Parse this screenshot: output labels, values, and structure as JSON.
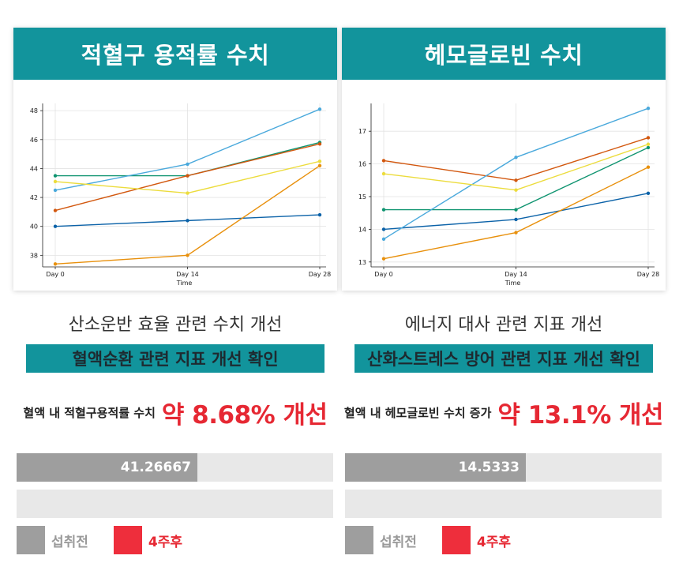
{
  "left": {
    "title": "적혈구 용적률 수치",
    "subtitle": "산소운반 효율 관련 수치 개선",
    "band": "혈액순환 관련 지표 개선 확인",
    "improve_label": "혈액 내 적혈구용적률 수치",
    "improve_value": "약 8.68% 개선",
    "bar_before": "41.26667",
    "bar_before_value": 41.26667,
    "bar_after_value": 0
  },
  "right": {
    "title": "헤모글로빈 수치",
    "subtitle": "에너지 대사 관련 지표 개선",
    "band": "산화스트레스 방어 관련 지표 개선 확인",
    "improve_label": "혈액 내 헤모글로빈 수치 증가",
    "improve_value": "약 13.1% 개선",
    "bar_before": "14.5333",
    "bar_before_value": 14.5333,
    "bar_after_value": 0
  },
  "legend": {
    "before": "섭취전",
    "after": "4주후"
  },
  "colors": {
    "teal": "#12949c",
    "red": "#e62833",
    "grey": "#9e9e9e"
  },
  "chart_data": [
    {
      "type": "line",
      "title": "",
      "xlabel": "Time",
      "ylabel": "",
      "categories": [
        "Day 0",
        "Day 14",
        "Day 28"
      ],
      "ylim": [
        37.2,
        48.5
      ],
      "yticks": [
        38,
        40,
        42,
        44,
        46,
        48
      ],
      "series": [
        {
          "name": "s1",
          "color": "#0b62a8",
          "values": [
            40.0,
            40.4,
            40.8
          ]
        },
        {
          "name": "s2",
          "color": "#e8900c",
          "values": [
            37.4,
            38.0,
            44.2
          ]
        },
        {
          "name": "s3",
          "color": "#0f9470",
          "values": [
            43.5,
            43.5,
            45.8
          ]
        },
        {
          "name": "s4",
          "color": "#d2570e",
          "values": [
            41.1,
            43.5,
            45.7
          ]
        },
        {
          "name": "s5",
          "color": "#4aa9dc",
          "values": [
            42.5,
            44.3,
            48.1
          ]
        },
        {
          "name": "s6",
          "color": "#ecdc3c",
          "values": [
            43.1,
            42.3,
            44.5
          ]
        }
      ]
    },
    {
      "type": "line",
      "title": "",
      "xlabel": "Time",
      "ylabel": "",
      "categories": [
        "Day 0",
        "Day 14",
        "Day 28"
      ],
      "ylim": [
        12.85,
        17.85
      ],
      "yticks": [
        13,
        14,
        15,
        16,
        17
      ],
      "series": [
        {
          "name": "s1",
          "color": "#0b62a8",
          "values": [
            14.0,
            14.3,
            15.1
          ]
        },
        {
          "name": "s2",
          "color": "#e8900c",
          "values": [
            13.1,
            13.9,
            15.9
          ]
        },
        {
          "name": "s3",
          "color": "#0f9470",
          "values": [
            14.6,
            14.6,
            16.5
          ]
        },
        {
          "name": "s4",
          "color": "#d2570e",
          "values": [
            16.1,
            15.5,
            16.8
          ]
        },
        {
          "name": "s5",
          "color": "#4aa9dc",
          "values": [
            13.7,
            16.2,
            17.7
          ]
        },
        {
          "name": "s6",
          "color": "#ecdc3c",
          "values": [
            15.7,
            15.2,
            16.6
          ]
        }
      ]
    }
  ]
}
